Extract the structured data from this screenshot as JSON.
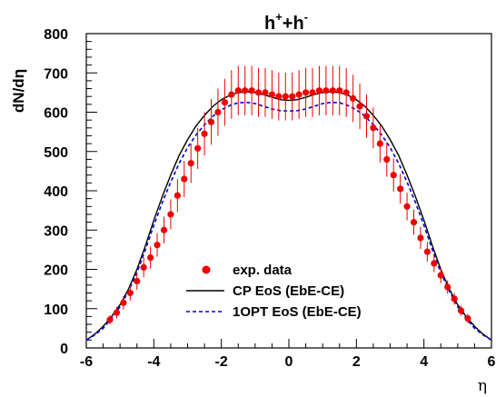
{
  "chart_data": {
    "type": "scatter",
    "title": {
      "base": "h",
      "sup1": "+",
      "mid": "+h",
      "sup2": "-"
    },
    "xlabel": "η",
    "ylabel": "dN/dη",
    "xlim": [
      -6,
      6
    ],
    "ylim": [
      0,
      800
    ],
    "xticks": [
      -6,
      -4,
      -2,
      0,
      2,
      4,
      6
    ],
    "yticks": [
      0,
      100,
      200,
      300,
      400,
      500,
      600,
      700,
      800
    ],
    "grid": false,
    "legend_position": "bottom-center",
    "series": [
      {
        "name": "exp. data",
        "kind": "points-with-errorbars",
        "color": "#ee0000",
        "x": [
          -5.3,
          -5.1,
          -4.9,
          -4.7,
          -4.5,
          -4.3,
          -4.1,
          -3.9,
          -3.7,
          -3.5,
          -3.3,
          -3.1,
          -2.9,
          -2.7,
          -2.5,
          -2.3,
          -2.1,
          -1.9,
          -1.7,
          -1.5,
          -1.3,
          -1.1,
          -0.9,
          -0.7,
          -0.5,
          -0.3,
          -0.1,
          0.1,
          0.3,
          0.5,
          0.7,
          0.9,
          1.1,
          1.3,
          1.5,
          1.7,
          1.9,
          2.1,
          2.3,
          2.5,
          2.7,
          2.9,
          3.1,
          3.3,
          3.5,
          3.7,
          3.9,
          4.1,
          4.3,
          4.5,
          4.7,
          4.9,
          5.1,
          5.3
        ],
        "y": [
          72,
          90,
          115,
          140,
          170,
          205,
          230,
          262,
          300,
          340,
          388,
          430,
          470,
          508,
          545,
          575,
          600,
          625,
          645,
          655,
          655,
          655,
          650,
          650,
          645,
          640,
          640,
          640,
          645,
          650,
          650,
          655,
          655,
          655,
          655,
          650,
          635,
          615,
          590,
          560,
          520,
          480,
          440,
          405,
          360,
          320,
          280,
          245,
          215,
          185,
          155,
          125,
          95,
          75
        ],
        "yerr": [
          12,
          15,
          17,
          20,
          22,
          25,
          28,
          30,
          34,
          38,
          42,
          46,
          50,
          52,
          55,
          58,
          60,
          60,
          62,
          63,
          63,
          63,
          62,
          62,
          62,
          61,
          61,
          61,
          62,
          62,
          62,
          63,
          63,
          63,
          63,
          62,
          60,
          58,
          55,
          52,
          48,
          44,
          42,
          38,
          35,
          32,
          28,
          25,
          22,
          20,
          17,
          15,
          13,
          12
        ]
      },
      {
        "name": "CP EoS (EbE-CE)",
        "kind": "line",
        "color": "#000000",
        "dash": "solid",
        "x": [
          -6,
          -5.75,
          -5.5,
          -5.25,
          -5,
          -4.75,
          -4.5,
          -4.25,
          -4,
          -3.75,
          -3.5,
          -3.25,
          -3,
          -2.75,
          -2.5,
          -2.25,
          -2,
          -1.75,
          -1.5,
          -1.25,
          -1,
          -0.75,
          -0.5,
          -0.25,
          0,
          0.25,
          0.5,
          0.75,
          1,
          1.25,
          1.5,
          1.75,
          2,
          2.25,
          2.5,
          2.75,
          3,
          3.25,
          3.5,
          3.75,
          4,
          4.25,
          4.5,
          4.75,
          5,
          5.25,
          5.5,
          5.75,
          6
        ],
        "y": [
          20,
          35,
          55,
          80,
          110,
          150,
          200,
          260,
          325,
          385,
          440,
          490,
          530,
          565,
          592,
          615,
          632,
          643,
          650,
          652,
          650,
          645,
          638,
          632,
          630,
          632,
          638,
          645,
          650,
          652,
          650,
          643,
          632,
          615,
          592,
          565,
          530,
          490,
          440,
          385,
          325,
          260,
          200,
          150,
          110,
          80,
          55,
          35,
          20
        ]
      },
      {
        "name": "1OPT EoS (EbE-CE)",
        "kind": "line",
        "color": "#0000dd",
        "dash": "dashed",
        "x": [
          -6,
          -5.75,
          -5.5,
          -5.25,
          -5,
          -4.75,
          -4.5,
          -4.25,
          -4,
          -3.75,
          -3.5,
          -3.25,
          -3,
          -2.75,
          -2.5,
          -2.25,
          -2,
          -1.75,
          -1.5,
          -1.25,
          -1,
          -0.75,
          -0.5,
          -0.25,
          0,
          0.25,
          0.5,
          0.75,
          1,
          1.25,
          1.5,
          1.75,
          2,
          2.25,
          2.5,
          2.75,
          3,
          3.25,
          3.5,
          3.75,
          4,
          4.25,
          4.5,
          4.75,
          5,
          5.25,
          5.5,
          5.75,
          6
        ],
        "y": [
          20,
          33,
          50,
          75,
          105,
          145,
          192,
          250,
          312,
          370,
          422,
          470,
          510,
          542,
          568,
          590,
          606,
          617,
          624,
          625,
          622,
          615,
          608,
          604,
          603,
          604,
          608,
          615,
          622,
          625,
          624,
          617,
          606,
          590,
          568,
          542,
          510,
          470,
          422,
          370,
          312,
          250,
          192,
          145,
          105,
          75,
          50,
          33,
          20
        ]
      }
    ]
  }
}
